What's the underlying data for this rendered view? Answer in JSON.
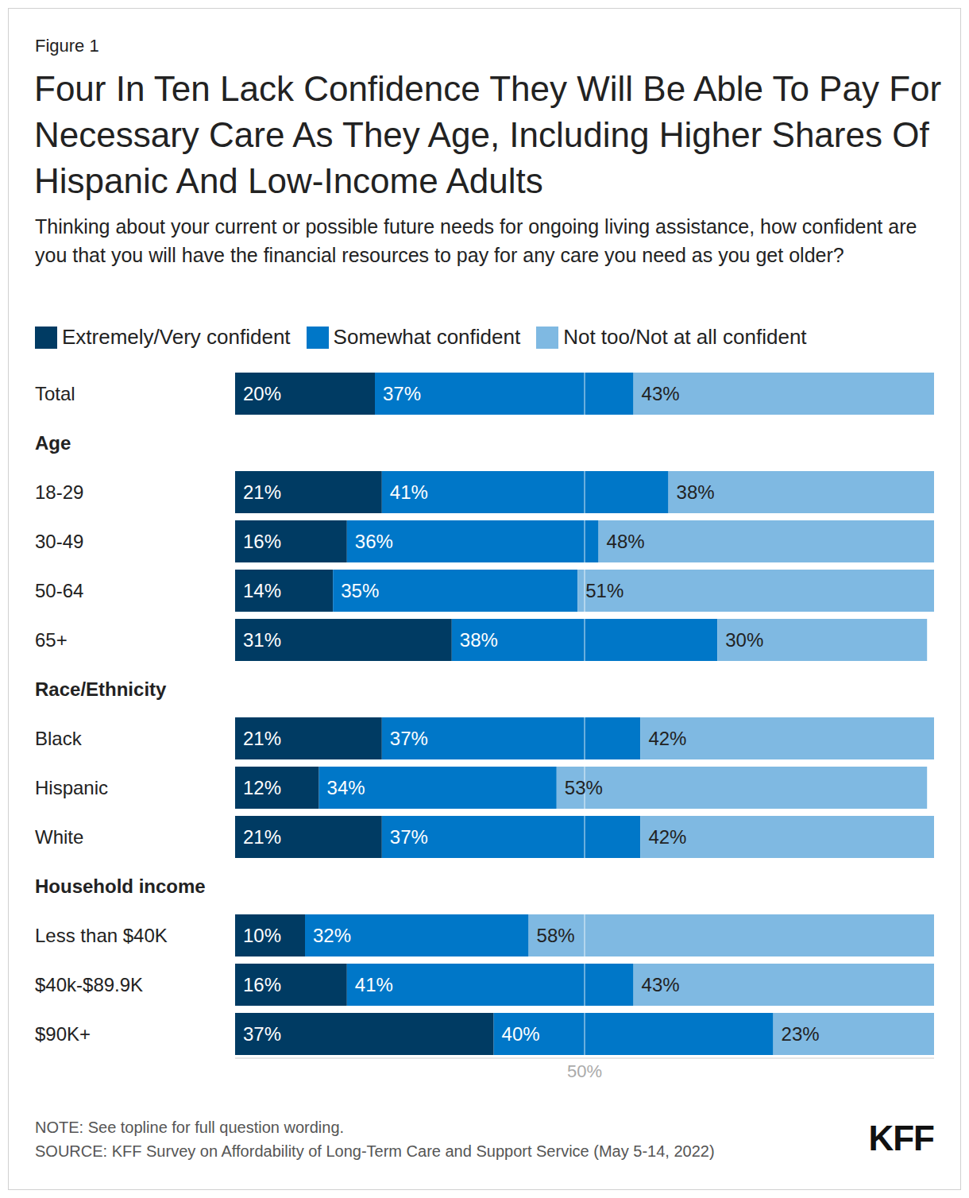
{
  "chart_data": {
    "type": "bar",
    "orientation": "horizontal",
    "stacked": true,
    "data_labels": true,
    "grid": true,
    "legend": "top-left",
    "figure_label": "Figure 1",
    "title": "Four In Ten Lack Confidence They Will Be Able To Pay For Necessary Care As They Age, Including Higher Shares Of Hispanic And Low-Income Adults",
    "subtitle": "Thinking about your current or possible future needs for ongoing living assistance, how confident are you that you will have the financial resources to pay for any care you need as you get older?",
    "categories": [
      "Total",
      "18-29",
      "30-49",
      "50-64",
      "65+",
      "Black",
      "Hispanic",
      "White",
      "Less than $40K",
      "$40k-$89.9K",
      "$90K+"
    ],
    "groups": [
      {
        "name": "Age",
        "members": [
          "18-29",
          "30-49",
          "50-64",
          "65+"
        ]
      },
      {
        "name": "Race/Ethnicity",
        "members": [
          "Black",
          "Hispanic",
          "White"
        ]
      },
      {
        "name": "Household income",
        "members": [
          "Less than $40K",
          "$40k-$89.9K",
          "$90K+"
        ]
      }
    ],
    "series": [
      {
        "name": "Extremely/Very confident",
        "color": "#003b63",
        "values": [
          20,
          21,
          16,
          14,
          31,
          21,
          12,
          21,
          10,
          16,
          37
        ],
        "value_labels": [
          "20%",
          "21%",
          "16%",
          "14%",
          "31%",
          "21%",
          "12%",
          "21%",
          "10%",
          "16%",
          "37%"
        ]
      },
      {
        "name": "Somewhat confident",
        "color": "#0077c8",
        "values": [
          37,
          41,
          36,
          35,
          38,
          37,
          34,
          37,
          32,
          41,
          40
        ],
        "value_labels": [
          "37%",
          "41%",
          "36%",
          "35%",
          "38%",
          "37%",
          "34%",
          "37%",
          "32%",
          "41%",
          "40%"
        ]
      },
      {
        "name": "Not too/Not at all confident",
        "color": "#7fb9e2",
        "values": [
          43,
          38,
          48,
          51,
          30,
          42,
          53,
          42,
          58,
          43,
          23
        ],
        "value_labels": [
          "43%",
          "38%",
          "48%",
          "51%",
          "30%",
          "42%",
          "53%",
          "42%",
          "58%",
          "43%",
          "23%"
        ]
      }
    ],
    "xlim": [
      0,
      100
    ],
    "xticks": [
      {
        "value": 50,
        "label": "50%"
      }
    ],
    "note": "NOTE: See topline for full question wording.",
    "source": "SOURCE: KFF Survey on Affordability of Long-Term Care and Support Service (May 5-14, 2022)",
    "logo": "KFF"
  }
}
